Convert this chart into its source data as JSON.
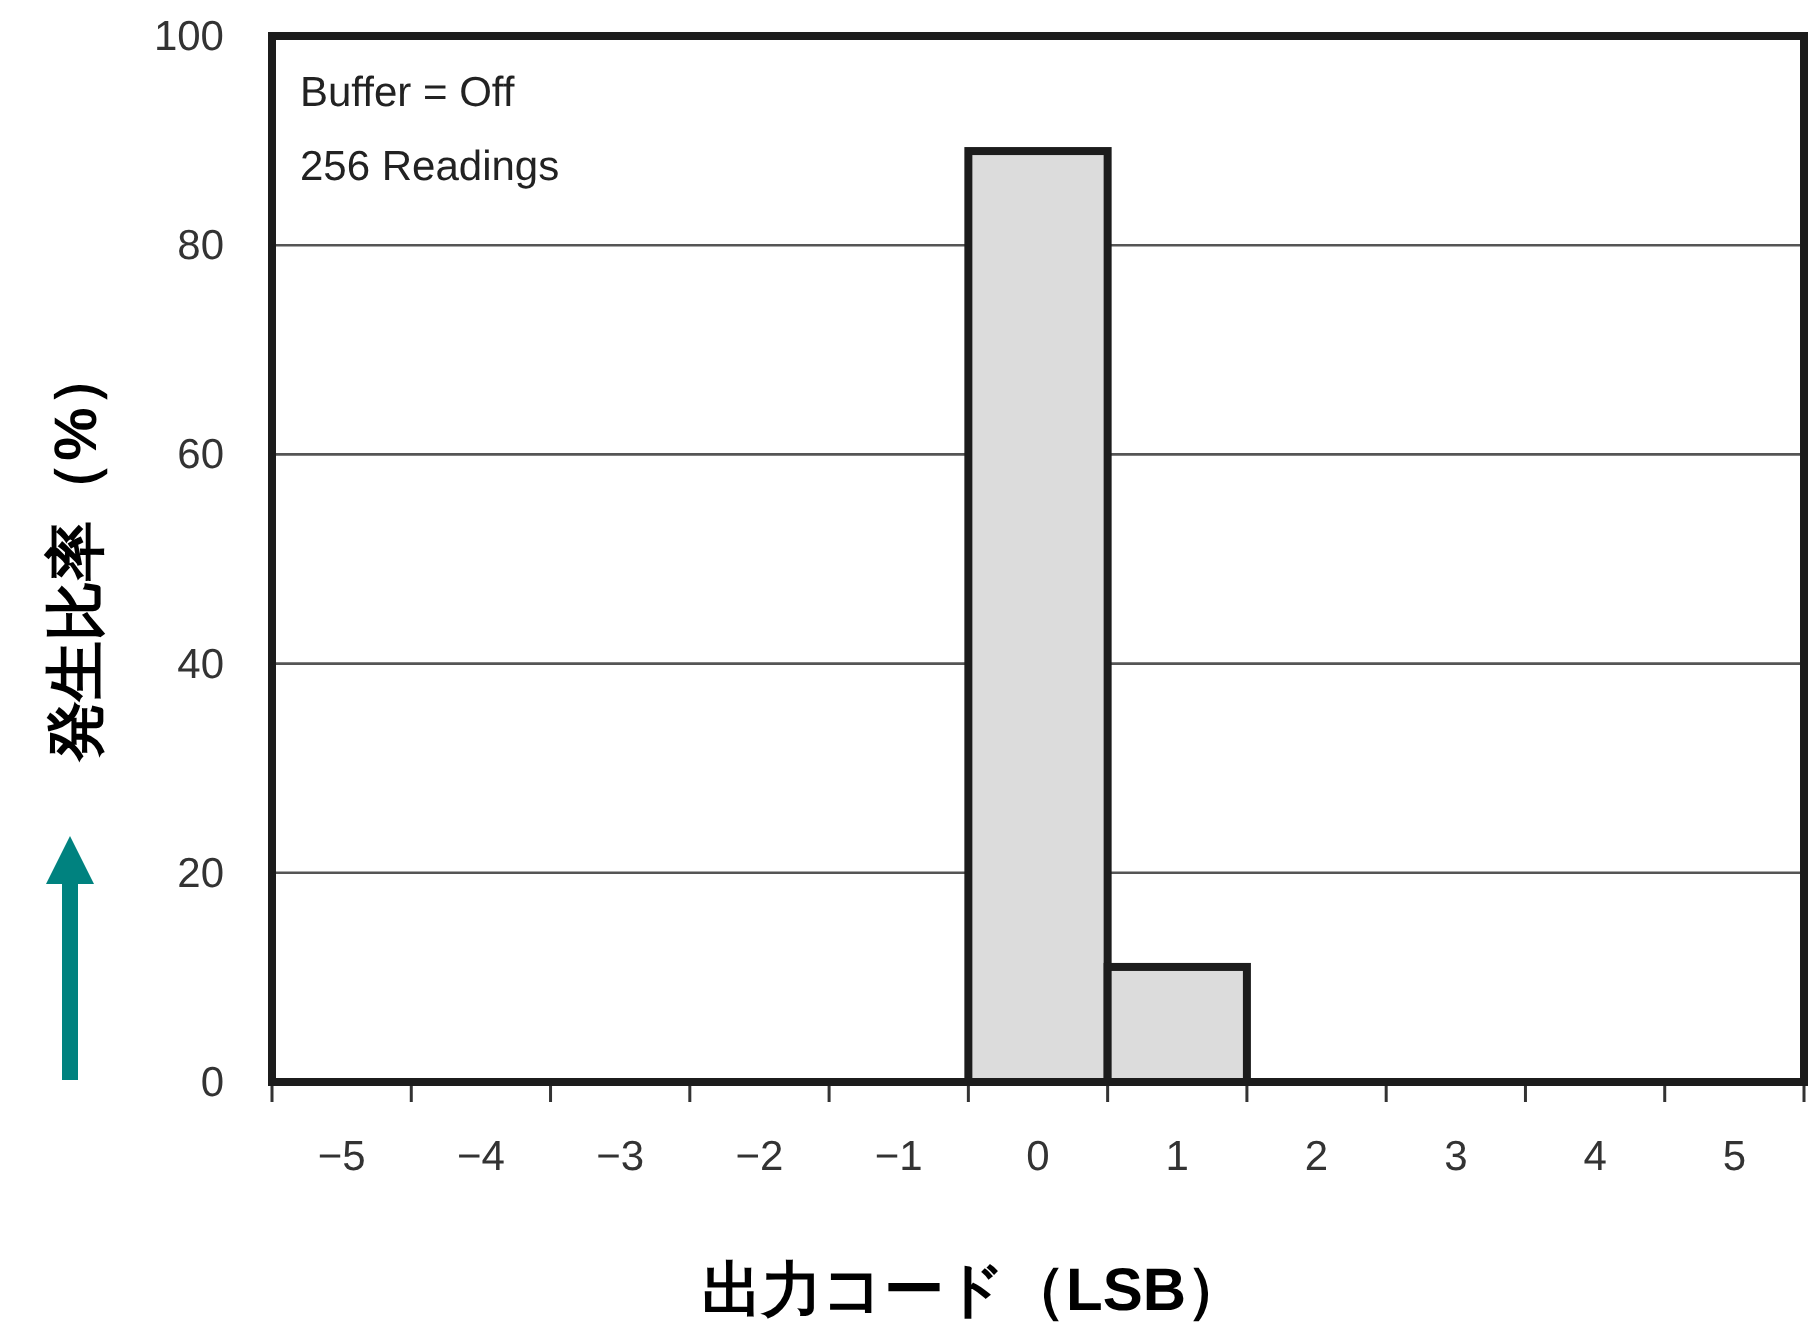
{
  "chart_data": {
    "type": "bar",
    "xlabel": "出力コード（LSB）",
    "ylabel": "発生比率（%）",
    "annotations": [
      "Buffer = Off",
      "256 Readings"
    ],
    "categories": [
      "−5",
      "−4",
      "−3",
      "−2",
      "−1",
      "0",
      "1",
      "2",
      "3",
      "4",
      "5"
    ],
    "values": [
      0,
      0,
      0,
      0,
      0,
      89,
      11,
      0,
      0,
      0,
      0
    ],
    "color": "#dcdcdc",
    "ylim": [
      0,
      100
    ],
    "yticks": [
      0,
      20,
      40,
      60,
      80,
      100
    ],
    "grid": "y"
  }
}
